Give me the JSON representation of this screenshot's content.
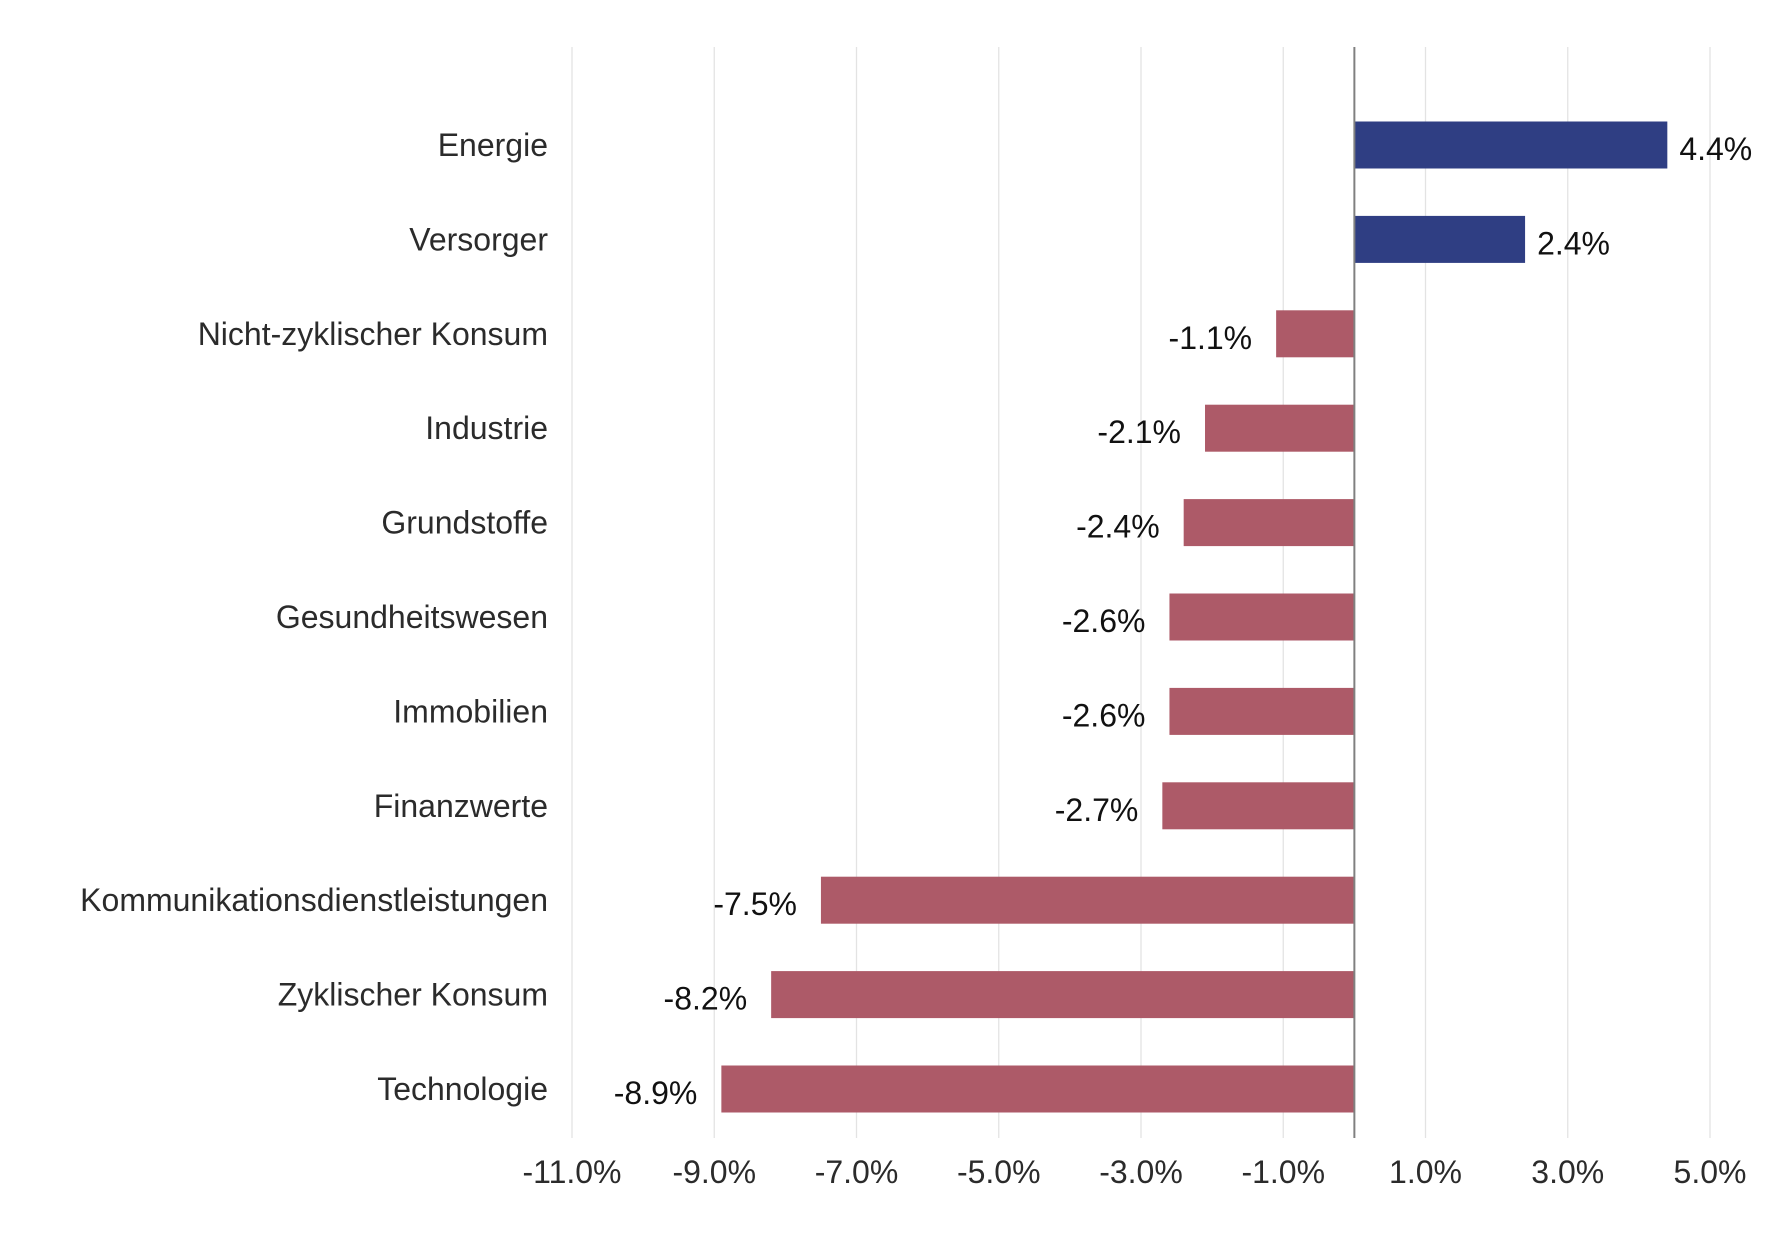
{
  "chart_data": {
    "type": "bar",
    "orientation": "horizontal",
    "categories": [
      "Energie",
      "Versorger",
      "Nicht-zyklischer Konsum",
      "Industrie",
      "Grundstoffe",
      "Gesundheitswesen",
      "Immobilien",
      "Finanzwerte",
      "Kommunikationsdienstleistungen",
      "Zyklischer Konsum",
      "Technologie"
    ],
    "values": [
      4.4,
      2.4,
      -1.1,
      -2.1,
      -2.4,
      -2.6,
      -2.6,
      -2.7,
      -7.5,
      -8.2,
      -8.9
    ],
    "value_labels": [
      "4.4%",
      "2.4%",
      "-1.1%",
      "-2.1%",
      "-2.4%",
      "-2.6%",
      "-2.6%",
      "-2.7%",
      "-7.5%",
      "-8.2%",
      "-8.9%"
    ],
    "xlim": [
      -11,
      5
    ],
    "xticks": [
      -11,
      -9,
      -7,
      -5,
      -3,
      -1,
      1,
      3,
      5
    ],
    "xtick_labels": [
      "-11.0%",
      "-9.0%",
      "-7.0%",
      "-5.0%",
      "-3.0%",
      "-1.0%",
      "1.0%",
      "3.0%",
      "5.0%"
    ],
    "grid": "vertical",
    "colors": {
      "positive": "#2f3e83",
      "negative": "#ad5a68",
      "grid": "#e3e3e3",
      "zero_line": "#808080"
    },
    "title": "",
    "xlabel": "",
    "ylabel": ""
  }
}
